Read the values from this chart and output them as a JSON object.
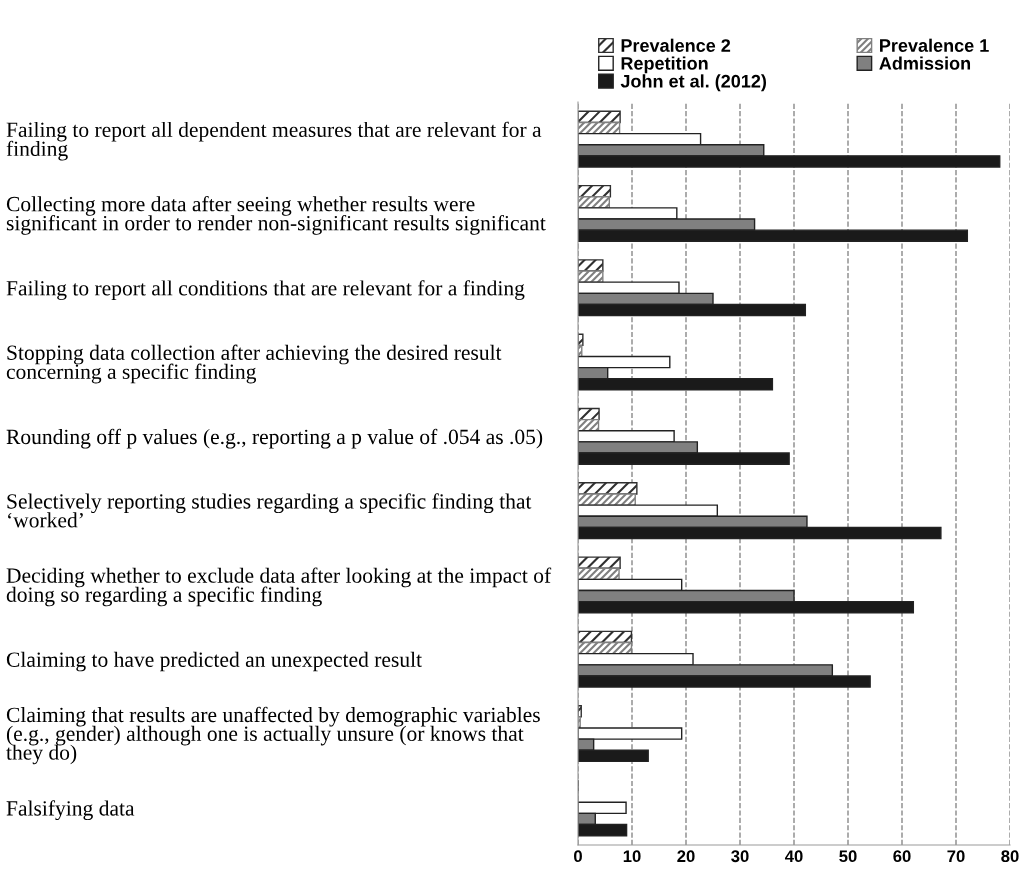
{
  "chart_data": {
    "type": "bar",
    "orientation": "horizontal",
    "categories": [
      "Failing to report all dependent measures that are relevant for a\nfinding",
      "Collecting more data after seeing whether results were\nsignificant in order to render non-significant results significant",
      "Failing to report all conditions that are relevant for a finding",
      "Stopping data collection after achieving the desired result\nconcerning a specific finding",
      "Rounding off p values (e.g., reporting a p value of .054 as .05)",
      "Selectively reporting studies regarding a specific finding that\n‘worked’",
      "Deciding whether to exclude data after looking at the impact of\ndoing so regarding a specific finding",
      "Claiming to have predicted an unexpected result",
      "Claiming that results are unaffected by demographic variables\n(e.g., gender) although one is actually unsure (or knows that\nthey do)",
      "Falsifying data"
    ],
    "series": [
      {
        "name": "Prevalence 2",
        "color": "#303030",
        "values": [
          7.8,
          6.0,
          4.6,
          0.9,
          3.9,
          10.9,
          7.8,
          9.9,
          0.6,
          null
        ]
      },
      {
        "name": "Prevalence 1",
        "color": "#808080",
        "values": [
          7.7,
          5.8,
          4.6,
          0.7,
          3.8,
          10.6,
          7.6,
          9.9,
          0.4,
          null
        ]
      },
      {
        "name": "Repetition",
        "color": "#ffffff",
        "values": [
          22.7,
          18.3,
          18.7,
          17.0,
          17.8,
          25.8,
          19.2,
          21.3,
          19.2,
          8.9
        ]
      },
      {
        "name": "Admission",
        "color": "#808080",
        "values": [
          34.4,
          32.7,
          25.0,
          5.5,
          22.1,
          42.4,
          40.0,
          47.1,
          2.9,
          3.2
        ]
      },
      {
        "name": "John et al. (2012)",
        "color": "#1a1a1a",
        "values": [
          78.1,
          72.1,
          42.1,
          36.0,
          39.1,
          67.2,
          62.1,
          54.1,
          13.0,
          9.0
        ]
      }
    ],
    "xlim": [
      0,
      80
    ],
    "xticks": [
      0,
      10,
      20,
      30,
      40,
      50,
      60,
      70,
      80
    ],
    "grid": "x",
    "legend": "top"
  }
}
